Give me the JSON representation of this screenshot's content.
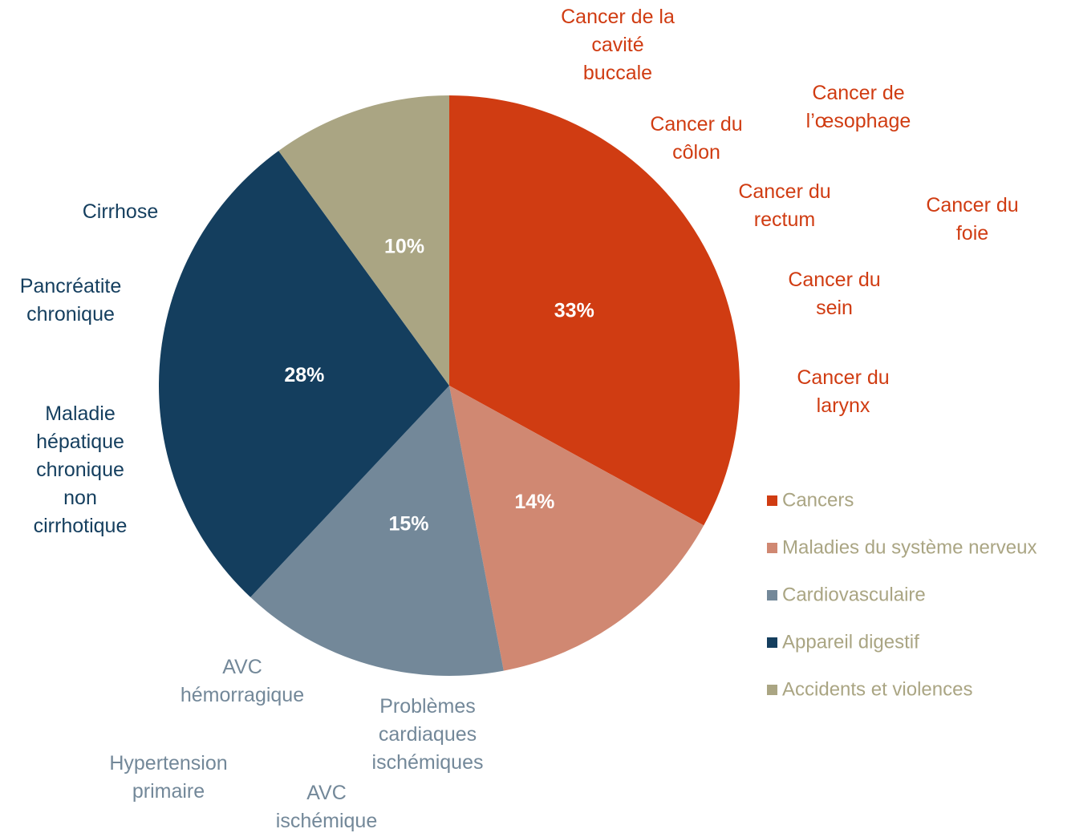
{
  "chart_data": {
    "type": "pie",
    "categories": [
      "Cancers",
      "Maladies du système nerveux",
      "Cardiovasculaire",
      "Appareil digestif",
      "Accidents et violences"
    ],
    "values": [
      33,
      14,
      15,
      28,
      10
    ],
    "value_labels": [
      "33%",
      "14%",
      "15%",
      "28%",
      "10%"
    ],
    "colors": [
      "#d03c12",
      "#d08872",
      "#738899",
      "#143e5e",
      "#aaa583"
    ],
    "legend_text_color": "#aaa583",
    "legend": "right",
    "annotations": [
      [
        "Cancer de la\ncavité\nbuccale",
        "Cancer de\nl’œsophage",
        "Cancer du\ncôlon",
        "Cancer du\nrectum",
        "Cancer du\nfoie",
        "Cancer du\nsein",
        "Cancer du\nlarynx"
      ],
      [],
      [
        "AVC\nhémorragique",
        "Problèmes\ncardiaques\nischémiques",
        "Hypertension\nprimaire",
        "AVC\nischémique"
      ],
      [
        "Cirrhose",
        "Pancréatite\nchronique",
        "Maladie\nhépatique\nchronique\nnon\ncirrhotique"
      ],
      []
    ]
  }
}
